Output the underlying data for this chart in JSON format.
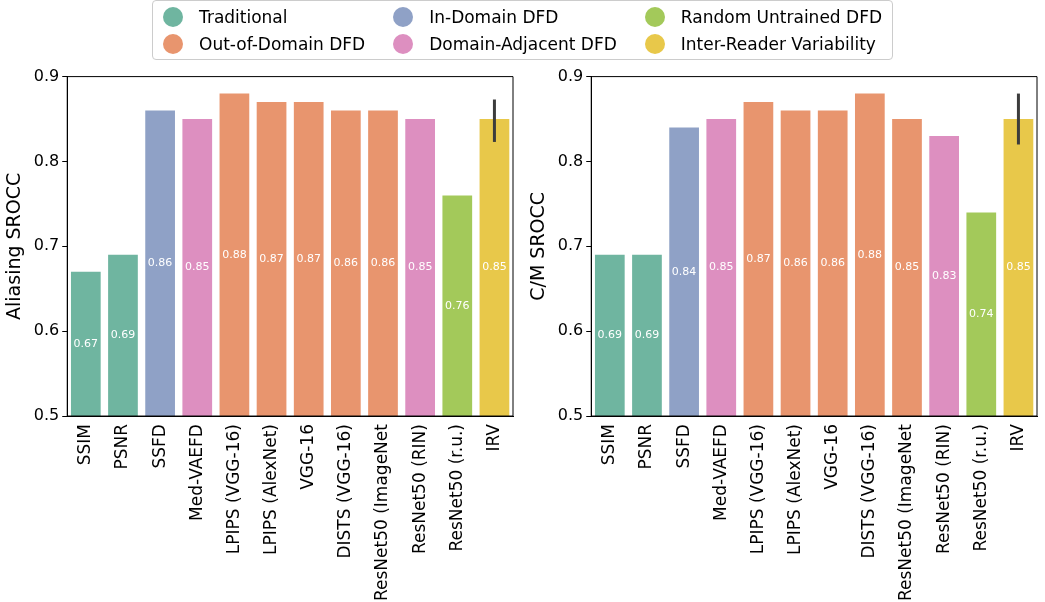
{
  "chart_data": [
    {
      "type": "bar",
      "ylabel": "Aliasing SROCC",
      "categories": [
        "SSIM",
        "PSNR",
        "SSFD",
        "Med-VAEFD",
        "LPIPS (VGG-16)",
        "LPIPS (AlexNet)",
        "VGG-16",
        "DISTS (VGG-16)",
        "ResNet50 (ImageNet",
        "ResNet50 (RIN)",
        "ResNet50 (r.u.)",
        "IRV"
      ],
      "ylim": [
        0.5,
        0.9
      ],
      "yticks": [
        0.5,
        0.6,
        0.7,
        0.8,
        0.9
      ],
      "grid": false,
      "legend": "top",
      "data_labels": true,
      "series": [
        {
          "name": "Traditional",
          "color": "#6fb5a0",
          "values": [
            0.67,
            0.69,
            null,
            null,
            null,
            null,
            null,
            null,
            null,
            null,
            null,
            null
          ]
        },
        {
          "name": "Out-of-Domain DFD",
          "color": "#e8956e",
          "values": [
            null,
            null,
            null,
            null,
            0.88,
            0.87,
            0.87,
            0.86,
            0.86,
            null,
            null,
            null
          ]
        },
        {
          "name": "In-Domain DFD",
          "color": "#8fa1c6",
          "values": [
            null,
            null,
            0.86,
            null,
            null,
            null,
            null,
            null,
            null,
            null,
            null,
            null
          ]
        },
        {
          "name": "Domain-Adjacent DFD",
          "color": "#dd8fc0",
          "values": [
            null,
            null,
            null,
            0.85,
            null,
            null,
            null,
            null,
            null,
            0.85,
            null,
            null
          ]
        },
        {
          "name": "Random Untrained DFD",
          "color": "#a3c95a",
          "values": [
            null,
            null,
            null,
            null,
            null,
            null,
            null,
            null,
            null,
            null,
            0.76,
            null
          ]
        },
        {
          "name": "Inter-Reader Variability",
          "color": "#e8c84a",
          "values": [
            null,
            null,
            null,
            null,
            null,
            null,
            null,
            null,
            null,
            null,
            null,
            0.85
          ],
          "errors": [
            null,
            null,
            null,
            null,
            null,
            null,
            null,
            null,
            null,
            null,
            null,
            [
              0.823,
              0.873
            ]
          ]
        }
      ]
    },
    {
      "type": "bar",
      "ylabel": "C/M SROCC",
      "categories": [
        "SSIM",
        "PSNR",
        "SSFD",
        "Med-VAEFD",
        "LPIPS (VGG-16)",
        "LPIPS (AlexNet)",
        "VGG-16",
        "DISTS (VGG-16)",
        "ResNet50 (ImageNet",
        "ResNet50 (RIN)",
        "ResNet50 (r.u.)",
        "IRV"
      ],
      "ylim": [
        0.5,
        0.9
      ],
      "yticks": [
        0.5,
        0.6,
        0.7,
        0.8,
        0.9
      ],
      "grid": false,
      "legend": "top",
      "data_labels": true,
      "series": [
        {
          "name": "Traditional",
          "color": "#6fb5a0",
          "values": [
            0.69,
            0.69,
            null,
            null,
            null,
            null,
            null,
            null,
            null,
            null,
            null,
            null
          ]
        },
        {
          "name": "Out-of-Domain DFD",
          "color": "#e8956e",
          "values": [
            null,
            null,
            null,
            null,
            0.87,
            0.86,
            0.86,
            0.88,
            0.85,
            null,
            null,
            null
          ]
        },
        {
          "name": "In-Domain DFD",
          "color": "#8fa1c6",
          "values": [
            null,
            null,
            0.84,
            null,
            null,
            null,
            null,
            null,
            null,
            null,
            null,
            null
          ]
        },
        {
          "name": "Domain-Adjacent DFD",
          "color": "#dd8fc0",
          "values": [
            null,
            null,
            null,
            0.85,
            null,
            null,
            null,
            null,
            null,
            0.83,
            null,
            null
          ]
        },
        {
          "name": "Random Untrained DFD",
          "color": "#a3c95a",
          "values": [
            null,
            null,
            null,
            null,
            null,
            null,
            null,
            null,
            null,
            null,
            0.74,
            null
          ]
        },
        {
          "name": "Inter-Reader Variability",
          "color": "#e8c84a",
          "values": [
            null,
            null,
            null,
            null,
            null,
            null,
            null,
            null,
            null,
            null,
            null,
            0.85
          ],
          "errors": [
            null,
            null,
            null,
            null,
            null,
            null,
            null,
            null,
            null,
            null,
            null,
            [
              0.82,
              0.88
            ]
          ]
        }
      ]
    }
  ]
}
